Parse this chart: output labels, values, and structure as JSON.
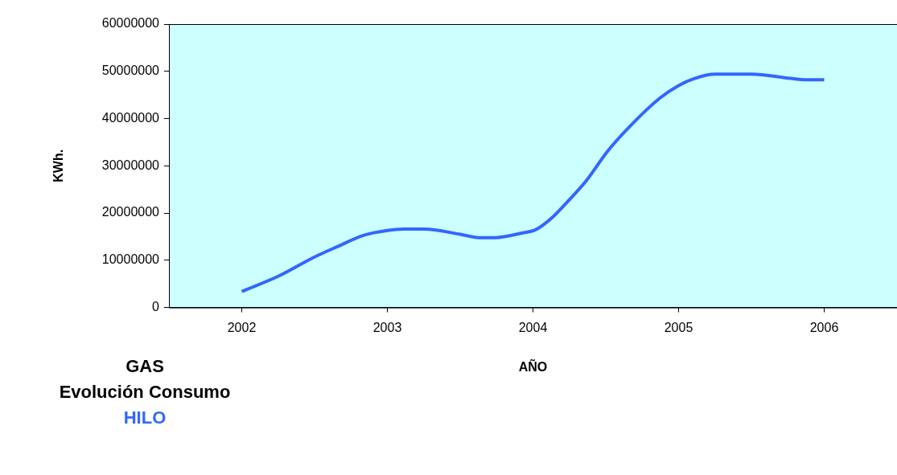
{
  "chart_data": {
    "type": "line",
    "title": "GAS",
    "subtitle": "Evolución Consumo",
    "annotations": [
      "HILO"
    ],
    "xlabel": "AÑO",
    "ylabel": "KWh.",
    "x": [
      2002,
      2002.25,
      2002.5,
      2002.65,
      2002.84,
      2003,
      2003.11,
      2003.25,
      2003.5,
      2003.63,
      2003.74,
      2003.93,
      2004.02,
      2004.13,
      2004.24,
      2004.37,
      2004.51,
      2004.67,
      2004.87,
      2005,
      2005.11,
      2005.25,
      2005.5,
      2005.77,
      2005.88,
      2006
    ],
    "series": [
      {
        "color": "#3366ff",
        "values": [
          3400000,
          6600000,
          10700000,
          12800000,
          15300000,
          16300000,
          16600000,
          16600000,
          15500000,
          14800000,
          14800000,
          15800000,
          16500000,
          19000000,
          22500000,
          27000000,
          33000000,
          38500000,
          44300000,
          47000000,
          48500000,
          49400000,
          49400000,
          48500000,
          48200000,
          48200000
        ]
      }
    ],
    "xlim": [
      2001.5,
      2006.5
    ],
    "xticks": [
      2002,
      2003,
      2004,
      2005,
      2006
    ],
    "ylim": [
      0,
      60000000
    ],
    "yticks": [
      0,
      10000000,
      20000000,
      30000000,
      40000000,
      50000000,
      60000000
    ],
    "marker": "none",
    "grid": false,
    "legend": false
  }
}
